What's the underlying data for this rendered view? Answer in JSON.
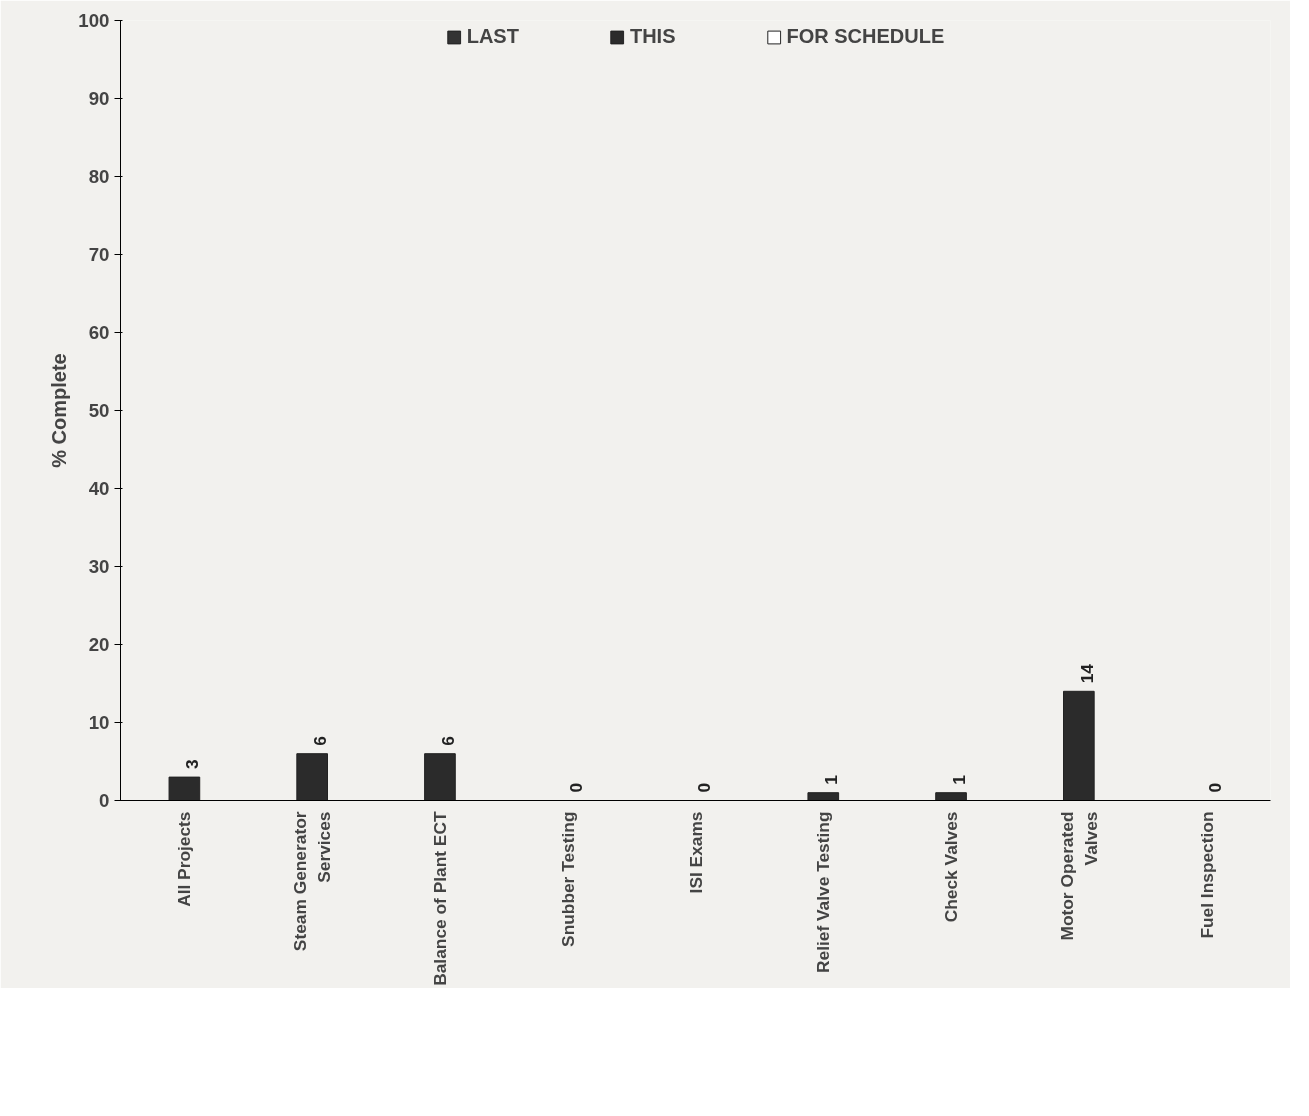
{
  "chart_data": {
    "type": "bar",
    "ylabel": "% Complete",
    "categories": [
      "All Projects",
      "Steam Generator Services",
      "Balance of Plant ECT",
      "Snubber Testing",
      "ISI Exams",
      "Relief Valve Testing",
      "Check Valves",
      "Motor Operated Valves",
      "Fuel Inspection"
    ],
    "series": [
      {
        "name": "LAST",
        "color": "#333333",
        "values": [
          null,
          null,
          null,
          null,
          null,
          null,
          null,
          null,
          null
        ]
      },
      {
        "name": "THIS",
        "color": "#2b2b2b",
        "values": [
          3,
          6,
          6,
          0,
          0,
          1,
          1,
          14,
          0
        ]
      },
      {
        "name": "FOR SCHEDULE",
        "color": "#ffffff",
        "values": [
          null,
          null,
          null,
          null,
          null,
          null,
          null,
          null,
          null
        ]
      }
    ],
    "ylim": [
      0,
      100
    ],
    "yticks": [
      0,
      10,
      20,
      30,
      40,
      50,
      60,
      70,
      80,
      90,
      100
    ],
    "grid": false,
    "legend": "top",
    "data_labels": true
  }
}
